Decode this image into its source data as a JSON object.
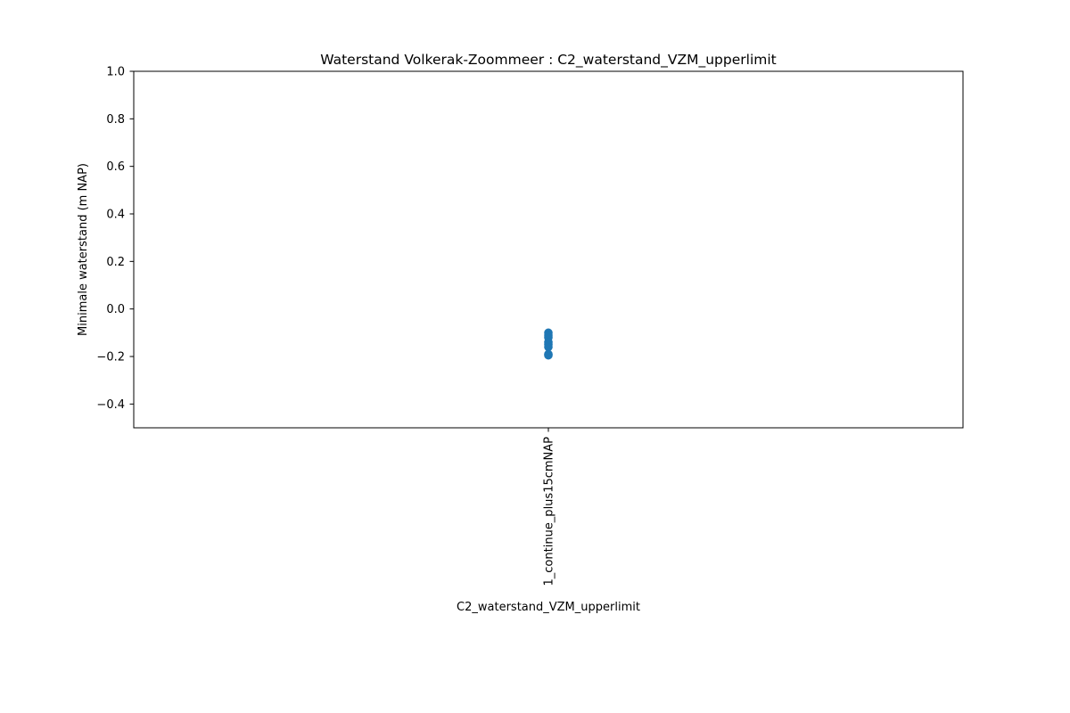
{
  "chart_data": {
    "type": "scatter",
    "title": "Waterstand Volkerak-Zoommeer : C2_waterstand_VZM_upperlimit",
    "xlabel": "C2_waterstand_VZM_upperlimit",
    "ylabel": "Minimale waterstand (m NAP)",
    "categories": [
      "1_continue_plus15cmNAP"
    ],
    "ylim": [
      -0.5,
      1.0
    ],
    "yticks": [
      -0.4,
      -0.2,
      0.0,
      0.2,
      0.4,
      0.6,
      0.8,
      1.0
    ],
    "ytick_labels": [
      "−0.4",
      "−0.2",
      "0.0",
      "0.2",
      "0.4",
      "0.6",
      "0.8",
      "1.0"
    ],
    "grid": false,
    "series": [
      {
        "color": "#1f77b4",
        "points": [
          {
            "x": "1_continue_plus15cmNAP",
            "y": -0.1
          },
          {
            "x": "1_continue_plus15cmNAP",
            "y": -0.11
          },
          {
            "x": "1_continue_plus15cmNAP",
            "y": -0.12
          },
          {
            "x": "1_continue_plus15cmNAP",
            "y": -0.14
          },
          {
            "x": "1_continue_plus15cmNAP",
            "y": -0.15
          },
          {
            "x": "1_continue_plus15cmNAP",
            "y": -0.16
          },
          {
            "x": "1_continue_plus15cmNAP",
            "y": -0.19
          },
          {
            "x": "1_continue_plus15cmNAP",
            "y": -0.195
          }
        ]
      }
    ]
  }
}
